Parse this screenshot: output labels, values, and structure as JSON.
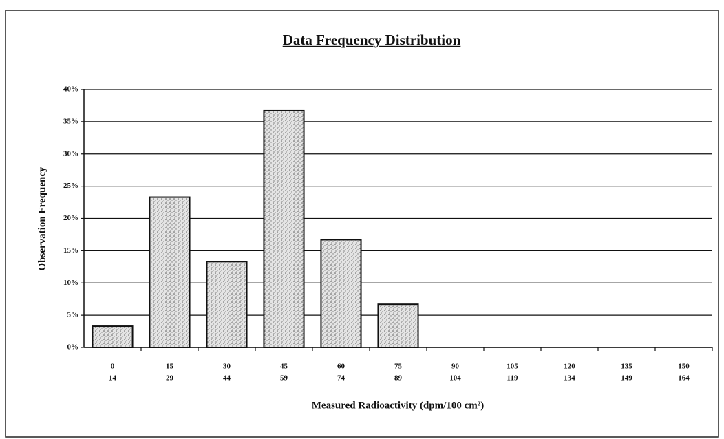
{
  "chart_data": {
    "type": "bar",
    "title": "Data Frequency Distribution",
    "x_label": "Measured Radioactivity (dpm/100 cm²)",
    "y_label": "Observation Frequency",
    "categories": [
      [
        "0",
        "14"
      ],
      [
        "15",
        "29"
      ],
      [
        "30",
        "44"
      ],
      [
        "45",
        "59"
      ],
      [
        "60",
        "74"
      ],
      [
        "75",
        "89"
      ],
      [
        "90",
        "104"
      ],
      [
        "105",
        "119"
      ],
      [
        "120",
        "134"
      ],
      [
        "135",
        "149"
      ],
      [
        "150",
        "164"
      ]
    ],
    "values": [
      3.3,
      23.3,
      13.3,
      36.7,
      16.7,
      6.7,
      0,
      0,
      0,
      0,
      0
    ],
    "color": "#c8c8c8",
    "ylim": [
      0,
      40
    ],
    "yticks": [
      {
        "value": 0,
        "label": "0%"
      },
      {
        "value": 5,
        "label": "5%"
      },
      {
        "value": 10,
        "label": "10%"
      },
      {
        "value": 15,
        "label": "15%"
      },
      {
        "value": 20,
        "label": "20%"
      },
      {
        "value": 25,
        "label": "25%"
      },
      {
        "value": 30,
        "label": "30%"
      },
      {
        "value": 35,
        "label": "35%"
      },
      {
        "value": 40,
        "label": "40%"
      }
    ],
    "grid": true
  }
}
